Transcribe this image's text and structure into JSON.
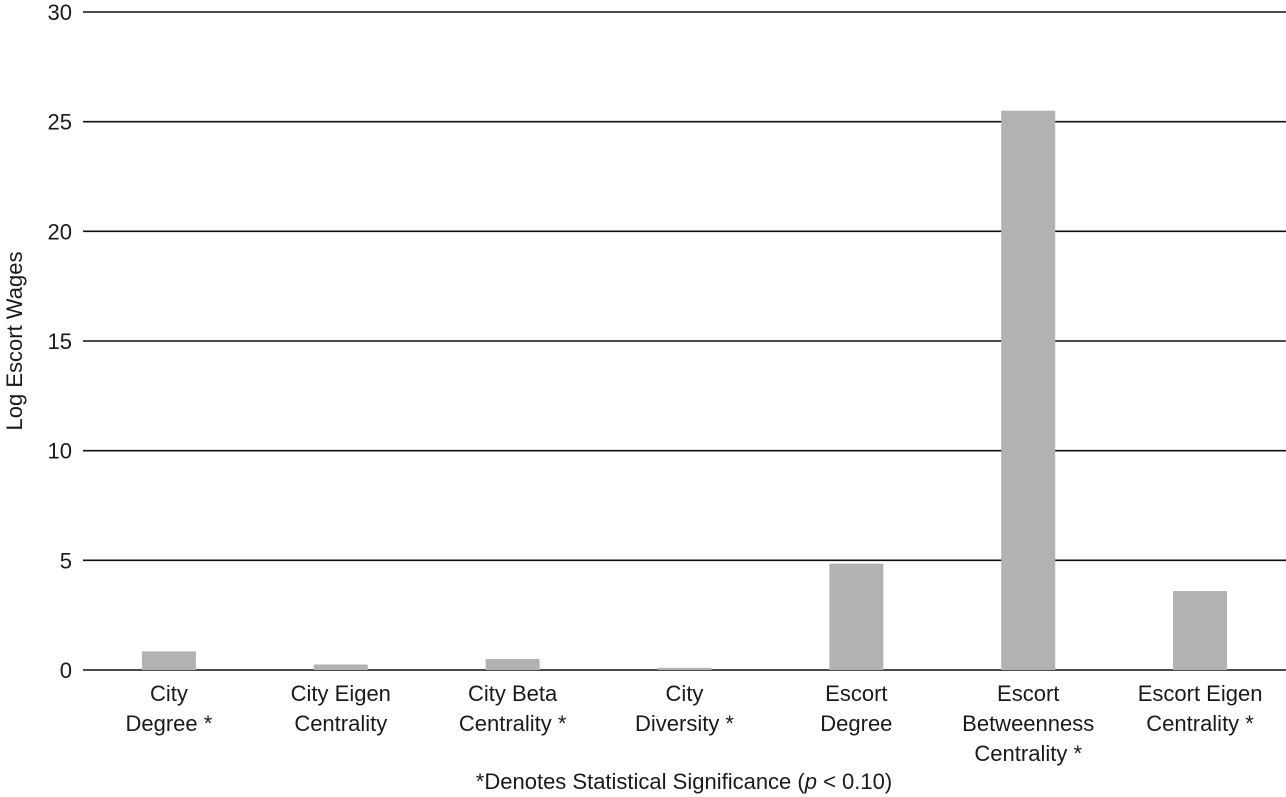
{
  "chart_data": {
    "type": "bar",
    "title": "",
    "xlabel": "",
    "ylabel": "Log Escort Wages",
    "ylim": [
      0,
      30
    ],
    "yticks": [
      0,
      5,
      10,
      15,
      20,
      25,
      30
    ],
    "grid": true,
    "bar_color": "#b1b2b4",
    "categories": [
      [
        "City",
        "Degree *"
      ],
      [
        "City Eigen",
        "Centrality"
      ],
      [
        "City Beta",
        "Centrality *"
      ],
      [
        "City",
        "Diversity *"
      ],
      [
        "Escort",
        "Degree"
      ],
      [
        "Escort",
        "Betweenness",
        "Centrality *"
      ],
      [
        "Escort Eigen",
        "Centrality *"
      ]
    ],
    "values": [
      0.85,
      0.25,
      0.5,
      0.1,
      4.85,
      25.5,
      3.6
    ],
    "note": {
      "prefix": "*Denotes Statistical Significance (",
      "italic": "p",
      "suffix": " < 0.10)"
    }
  }
}
